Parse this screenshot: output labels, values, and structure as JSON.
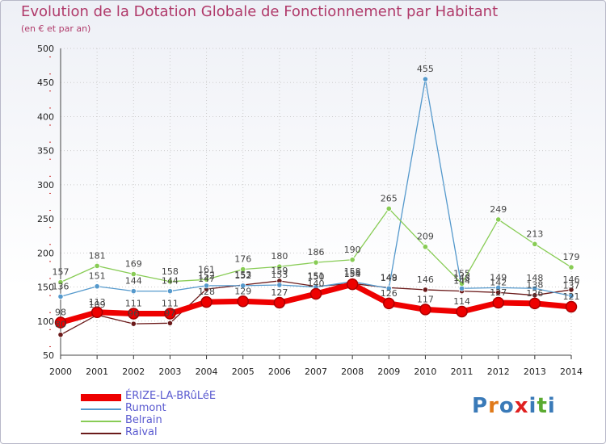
{
  "header": {
    "title": "Evolution de la Dotation Globale de Fonctionnement par Habitant",
    "subtitle": "(en € et par an)"
  },
  "brand": {
    "logo_text": "Proxiti"
  },
  "colors": {
    "title": "#b03a6a",
    "grid": "#cccccc",
    "legend_text": "#5a5ad0",
    "logo_letters": [
      "#3a7ab8",
      "#e07a1a",
      "#3a7ab8",
      "#e02020",
      "#3a7ab8",
      "#5aaa30",
      "#3a7ab8"
    ]
  },
  "chart_data": {
    "type": "line",
    "x": [
      "2000",
      "2001",
      "2002",
      "2003",
      "2004",
      "2005",
      "2006",
      "2007",
      "2008",
      "2009",
      "2010",
      "2011",
      "2012",
      "2013",
      "2014"
    ],
    "ylim": [
      50,
      500
    ],
    "yticks": [
      50,
      100,
      150,
      200,
      250,
      300,
      350,
      400,
      450,
      500
    ],
    "grid": true,
    "legend_position": "bottom-left",
    "series": [
      {
        "name": "ÉRIZE-LA-BRûLéE",
        "color": "#ee0000",
        "values": [
          98,
          113,
          111,
          111,
          128,
          129,
          127,
          140,
          154,
          126,
          117,
          114,
          127,
          126,
          121
        ]
      },
      {
        "name": "Rumont",
        "color": "#5599cc",
        "values": [
          136,
          151,
          144,
          144,
          152,
          152,
          153,
          150,
          158,
          148,
          455,
          148,
          149,
          148,
          137
        ]
      },
      {
        "name": "Belrain",
        "color": "#88cc55",
        "values": [
          157,
          181,
          169,
          158,
          161,
          176,
          180,
          186,
          190,
          265,
          209,
          155,
          249,
          213,
          179
        ]
      },
      {
        "name": "Raival",
        "color": "#6b1a1a",
        "values": [
          80,
          109,
          96,
          97,
          147,
          153,
          159,
          151,
          155,
          149,
          146,
          144,
          142,
          138,
          146
        ]
      }
    ],
    "data_labels": [
      {
        "series": 0,
        "index": 0,
        "text": "98",
        "pos": "above"
      },
      {
        "series": 0,
        "index": 1,
        "text": "113",
        "pos": "above"
      },
      {
        "series": 0,
        "index": 2,
        "text": "111",
        "pos": "above"
      },
      {
        "series": 0,
        "index": 3,
        "text": "111",
        "pos": "above"
      },
      {
        "series": 0,
        "index": 4,
        "text": "128",
        "pos": "above"
      },
      {
        "series": 0,
        "index": 5,
        "text": "129",
        "pos": "above"
      },
      {
        "series": 0,
        "index": 6,
        "text": "127",
        "pos": "above"
      },
      {
        "series": 0,
        "index": 7,
        "text": "140",
        "pos": "above"
      },
      {
        "series": 0,
        "index": 8,
        "text": "154",
        "pos": "above"
      },
      {
        "series": 0,
        "index": 9,
        "text": "126",
        "pos": "above"
      },
      {
        "series": 0,
        "index": 10,
        "text": "117",
        "pos": "above"
      },
      {
        "series": 0,
        "index": 11,
        "text": "114",
        "pos": "above"
      },
      {
        "series": 0,
        "index": 12,
        "text": "127",
        "pos": "above"
      },
      {
        "series": 0,
        "index": 13,
        "text": "126",
        "pos": "above"
      },
      {
        "series": 0,
        "index": 14,
        "text": "121",
        "pos": "above"
      },
      {
        "series": 1,
        "index": 0,
        "text": "136",
        "pos": "above"
      },
      {
        "series": 1,
        "index": 1,
        "text": "151",
        "pos": "above"
      },
      {
        "series": 1,
        "index": 2,
        "text": "144",
        "pos": "above"
      },
      {
        "series": 1,
        "index": 3,
        "text": "144",
        "pos": "above"
      },
      {
        "series": 1,
        "index": 4,
        "text": "152",
        "pos": "above"
      },
      {
        "series": 1,
        "index": 5,
        "text": "152",
        "pos": "above"
      },
      {
        "series": 1,
        "index": 6,
        "text": "153",
        "pos": "above"
      },
      {
        "series": 1,
        "index": 7,
        "text": "150",
        "pos": "above"
      },
      {
        "series": 1,
        "index": 8,
        "text": "158",
        "pos": "above"
      },
      {
        "series": 1,
        "index": 9,
        "text": "148",
        "pos": "above"
      },
      {
        "series": 1,
        "index": 10,
        "text": "455",
        "pos": "above"
      },
      {
        "series": 1,
        "index": 11,
        "text": "148",
        "pos": "above"
      },
      {
        "series": 1,
        "index": 12,
        "text": "149",
        "pos": "above"
      },
      {
        "series": 1,
        "index": 13,
        "text": "148",
        "pos": "above"
      },
      {
        "series": 1,
        "index": 14,
        "text": "137",
        "pos": "above"
      },
      {
        "series": 2,
        "index": 0,
        "text": "157",
        "pos": "above"
      },
      {
        "series": 2,
        "index": 1,
        "text": "181",
        "pos": "above"
      },
      {
        "series": 2,
        "index": 2,
        "text": "169",
        "pos": "above"
      },
      {
        "series": 2,
        "index": 3,
        "text": "158",
        "pos": "above"
      },
      {
        "series": 2,
        "index": 4,
        "text": "161",
        "pos": "above"
      },
      {
        "series": 2,
        "index": 5,
        "text": "176",
        "pos": "above"
      },
      {
        "series": 2,
        "index": 6,
        "text": "180",
        "pos": "above"
      },
      {
        "series": 2,
        "index": 7,
        "text": "186",
        "pos": "above"
      },
      {
        "series": 2,
        "index": 8,
        "text": "190",
        "pos": "above"
      },
      {
        "series": 2,
        "index": 9,
        "text": "265",
        "pos": "above"
      },
      {
        "series": 2,
        "index": 10,
        "text": "209",
        "pos": "above"
      },
      {
        "series": 2,
        "index": 11,
        "text": "155",
        "pos": "above"
      },
      {
        "series": 2,
        "index": 12,
        "text": "249",
        "pos": "above"
      },
      {
        "series": 2,
        "index": 13,
        "text": "213",
        "pos": "above"
      },
      {
        "series": 2,
        "index": 14,
        "text": "179",
        "pos": "above"
      },
      {
        "series": 3,
        "index": 0,
        "text": "80",
        "pos": "above"
      },
      {
        "series": 3,
        "index": 1,
        "text": "109",
        "pos": "above"
      },
      {
        "series": 3,
        "index": 2,
        "text": "96",
        "pos": "above"
      },
      {
        "series": 3,
        "index": 3,
        "text": "97",
        "pos": "above"
      },
      {
        "series": 3,
        "index": 4,
        "text": "147",
        "pos": "above"
      },
      {
        "series": 3,
        "index": 5,
        "text": "153",
        "pos": "above"
      },
      {
        "series": 3,
        "index": 6,
        "text": "159",
        "pos": "above"
      },
      {
        "series": 3,
        "index": 7,
        "text": "151",
        "pos": "above"
      },
      {
        "series": 3,
        "index": 8,
        "text": "155",
        "pos": "above"
      },
      {
        "series": 3,
        "index": 9,
        "text": "149",
        "pos": "above"
      },
      {
        "series": 3,
        "index": 10,
        "text": "146",
        "pos": "above"
      },
      {
        "series": 3,
        "index": 11,
        "text": "144",
        "pos": "above"
      },
      {
        "series": 3,
        "index": 12,
        "text": "142",
        "pos": "above"
      },
      {
        "series": 3,
        "index": 13,
        "text": "138",
        "pos": "above"
      },
      {
        "series": 3,
        "index": 14,
        "text": "146",
        "pos": "above"
      }
    ]
  }
}
